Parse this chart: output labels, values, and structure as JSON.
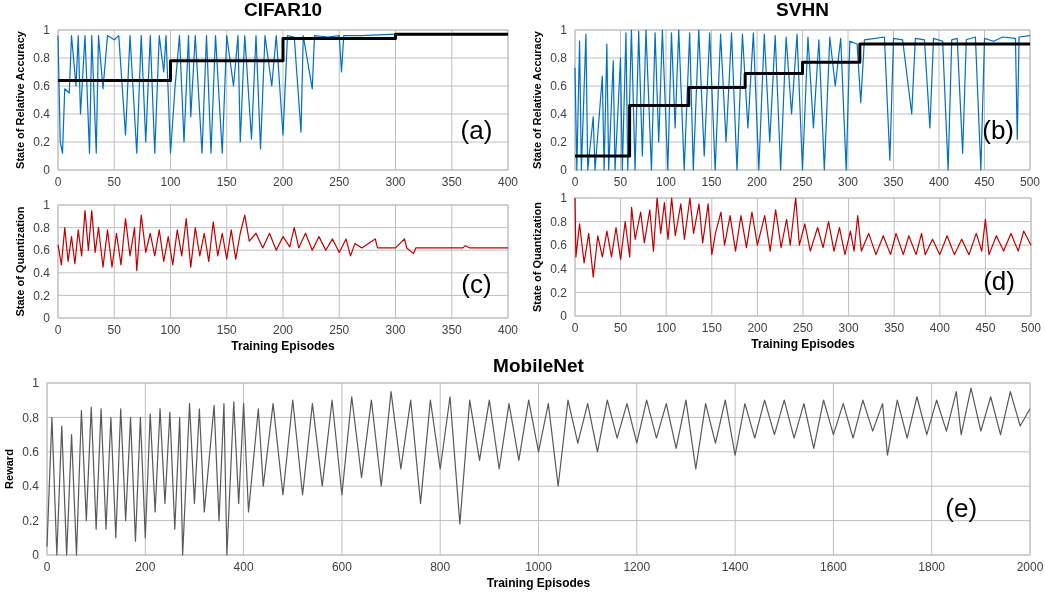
{
  "chart_data": [
    {
      "type": "line",
      "title": "CIFAR10",
      "ylabel": "State of Relative Accuracy",
      "xlim": [
        0,
        400
      ],
      "xticks": [
        0,
        50,
        100,
        150,
        200,
        250,
        300,
        350,
        400
      ],
      "ylim": [
        0,
        1
      ],
      "yticks": [
        0,
        0.2,
        0.4,
        0.6,
        0.8,
        1
      ],
      "grid": true,
      "annotations": [
        "(a)"
      ],
      "series": [
        {
          "color": "#0070c0",
          "x": [
            0,
            2,
            4,
            6,
            10,
            12,
            16,
            18,
            20,
            24,
            28,
            30,
            34,
            36,
            40,
            44,
            50,
            54,
            60,
            64,
            70,
            74,
            78,
            82,
            86,
            90,
            94,
            96,
            100,
            104,
            108,
            112,
            116,
            118,
            122,
            128,
            132,
            136,
            140,
            146,
            150,
            156,
            160,
            162,
            166,
            172,
            176,
            180,
            184,
            190,
            194,
            200,
            204,
            210,
            216,
            218,
            226,
            228,
            240,
            250,
            252,
            254,
            270,
            300
          ],
          "values": [
            0.96,
            0.2,
            0.12,
            0.58,
            0.55,
            0.96,
            0.6,
            0.96,
            0.4,
            0.96,
            0.12,
            0.96,
            0.12,
            0.96,
            0.58,
            0.96,
            0.93,
            0.96,
            0.25,
            0.96,
            0.12,
            0.96,
            0.2,
            0.96,
            0.12,
            0.96,
            0.7,
            0.96,
            0.12,
            0.59,
            0.96,
            0.2,
            0.96,
            0.38,
            0.96,
            0.12,
            0.96,
            0.12,
            0.96,
            0.12,
            0.96,
            0.6,
            0.96,
            0.2,
            0.96,
            0.22,
            0.96,
            0.15,
            0.96,
            0.6,
            0.96,
            0.25,
            0.96,
            0.95,
            0.27,
            0.96,
            0.58,
            0.96,
            0.95,
            0.96,
            0.7,
            0.96,
            0.96,
            0.97
          ]
        },
        {
          "type": "step",
          "color": "#000000",
          "x": [
            0,
            100,
            200,
            300,
            400
          ],
          "values": [
            0.64,
            0.78,
            0.94,
            0.97,
            0.97
          ]
        }
      ]
    },
    {
      "type": "line",
      "title": "SVHN",
      "ylabel": "State of Relative Accuracy",
      "xlim": [
        0,
        500
      ],
      "xticks": [
        0,
        50,
        100,
        150,
        200,
        250,
        300,
        350,
        400,
        450,
        500
      ],
      "ylim": [
        0,
        1
      ],
      "yticks": [
        0,
        0.2,
        0.4,
        0.6,
        0.8,
        1
      ],
      "grid": true,
      "annotations": [
        "(b)"
      ],
      "series": [
        {
          "color": "#0070c0",
          "x": [
            0,
            2,
            5,
            7,
            12,
            14,
            20,
            22,
            30,
            32,
            35,
            37,
            42,
            44,
            50,
            52,
            56,
            58,
            62,
            66,
            70,
            74,
            78,
            84,
            88,
            92,
            96,
            102,
            106,
            110,
            114,
            120,
            126,
            130,
            136,
            142,
            148,
            154,
            160,
            166,
            172,
            178,
            184,
            190,
            196,
            202,
            208,
            214,
            220,
            226,
            232,
            238,
            244,
            250,
            256,
            262,
            268,
            274,
            280,
            286,
            292,
            298,
            302,
            310,
            314,
            318,
            330,
            340,
            346,
            350,
            360,
            370,
            374,
            384,
            390,
            394,
            404,
            410,
            414,
            420,
            426,
            430,
            440,
            446,
            450,
            460,
            470,
            484,
            486,
            488,
            500
          ],
          "values": [
            0.73,
            0,
            0.92,
            0,
            0.97,
            0,
            0.38,
            0,
            0.67,
            0,
            0.9,
            0,
            0.78,
            0,
            0.8,
            0,
            0.98,
            0,
            1,
            0,
            0.99,
            0.1,
            1,
            0,
            0.98,
            0.2,
            1,
            0,
            0.98,
            0.3,
            1,
            0,
            0.98,
            0,
            1,
            0.1,
            0.98,
            0,
            0.97,
            0.2,
            0.98,
            0,
            0.97,
            0.3,
            0.98,
            0,
            0.97,
            0.2,
            0.96,
            0,
            0.95,
            0.4,
            0.97,
            0,
            0.95,
            0.3,
            0.93,
            0,
            0.95,
            0.6,
            0.94,
            0,
            0.92,
            0.9,
            0.48,
            0.93,
            0.94,
            0.95,
            0.07,
            0.94,
            0.93,
            0.4,
            0.94,
            0.93,
            0.3,
            0.94,
            0.92,
            0,
            0.93,
            0.94,
            0.12,
            0.93,
            0.95,
            0,
            0.94,
            0.92,
            0.95,
            0.94,
            0.22,
            0.95,
            0.96
          ]
        },
        {
          "type": "step",
          "color": "#000000",
          "x": [
            0,
            60,
            125,
            187,
            250,
            313,
            500
          ],
          "values": [
            0.1,
            0.46,
            0.59,
            0.69,
            0.77,
            0.9,
            0.9
          ]
        }
      ]
    },
    {
      "type": "line",
      "ylabel": "State of Quantization",
      "xlabel": "Training Episodes",
      "xlim": [
        0,
        400
      ],
      "xticks": [
        0,
        50,
        100,
        150,
        200,
        250,
        300,
        350,
        400
      ],
      "ylim": [
        0,
        1
      ],
      "yticks": [
        0,
        0.2,
        0.4,
        0.6,
        0.8,
        1
      ],
      "grid": true,
      "annotations": [
        "(c)"
      ],
      "series": [
        {
          "color": "#c00000",
          "x": [
            0,
            3,
            6,
            9,
            12,
            15,
            18,
            21,
            24,
            27,
            30,
            33,
            36,
            40,
            44,
            48,
            52,
            56,
            60,
            64,
            68,
            70,
            74,
            78,
            82,
            86,
            90,
            94,
            98,
            102,
            106,
            110,
            114,
            118,
            122,
            126,
            130,
            134,
            138,
            142,
            146,
            150,
            154,
            158,
            162,
            166,
            170,
            176,
            182,
            188,
            194,
            200,
            206,
            210,
            214,
            220,
            226,
            232,
            238,
            244,
            250,
            256,
            260,
            264,
            270,
            282,
            284,
            300,
            308,
            310,
            316,
            318,
            360,
            362,
            366,
            400
          ],
          "values": [
            0.65,
            0.47,
            0.8,
            0.5,
            0.72,
            0.48,
            0.78,
            0.55,
            0.95,
            0.6,
            0.95,
            0.58,
            0.8,
            0.45,
            0.78,
            0.45,
            0.75,
            0.47,
            0.88,
            0.55,
            0.8,
            0.42,
            0.91,
            0.58,
            0.75,
            0.55,
            0.78,
            0.5,
            0.72,
            0.47,
            0.78,
            0.55,
            0.88,
            0.45,
            0.8,
            0.55,
            0.75,
            0.5,
            0.85,
            0.55,
            0.75,
            0.52,
            0.78,
            0.52,
            0.75,
            0.91,
            0.68,
            0.75,
            0.62,
            0.75,
            0.6,
            0.72,
            0.63,
            0.8,
            0.62,
            0.75,
            0.6,
            0.72,
            0.6,
            0.7,
            0.58,
            0.7,
            0.55,
            0.66,
            0.62,
            0.7,
            0.62,
            0.62,
            0.7,
            0.62,
            0.57,
            0.62,
            0.62,
            0.64,
            0.62,
            0.62
          ]
        }
      ]
    },
    {
      "type": "line",
      "ylabel": "State of Quantization",
      "xlabel": "Training Episodes",
      "xlim": [
        0,
        500
      ],
      "xticks": [
        0,
        50,
        100,
        150,
        200,
        250,
        300,
        350,
        400,
        450,
        500
      ],
      "ylim": [
        0,
        1
      ],
      "yticks": [
        0,
        0.2,
        0.4,
        0.6,
        0.8,
        1
      ],
      "grid": true,
      "annotations": [
        "(d)"
      ],
      "series": [
        {
          "color": "#c00000",
          "x": [
            0,
            1,
            5,
            10,
            15,
            20,
            25,
            30,
            35,
            40,
            45,
            50,
            55,
            60,
            62,
            66,
            72,
            76,
            82,
            86,
            90,
            94,
            98,
            102,
            106,
            110,
            116,
            120,
            126,
            130,
            136,
            140,
            146,
            150,
            154,
            160,
            164,
            170,
            176,
            182,
            188,
            194,
            200,
            208,
            214,
            220,
            226,
            232,
            236,
            242,
            246,
            252,
            258,
            266,
            272,
            278,
            284,
            290,
            296,
            302,
            306,
            310,
            314,
            322,
            330,
            338,
            346,
            352,
            360,
            366,
            374,
            380,
            384,
            392,
            400,
            408,
            416,
            424,
            432,
            440,
            446,
            450,
            454,
            462,
            470,
            478,
            486,
            492,
            500
          ],
          "values": [
            1,
            0.5,
            0.78,
            0.45,
            0.7,
            0.33,
            0.68,
            0.5,
            0.72,
            0.5,
            0.75,
            0.48,
            0.8,
            0.5,
            0.92,
            0.65,
            0.88,
            0.62,
            0.9,
            0.55,
            1,
            0.7,
            0.96,
            0.65,
            1,
            0.68,
            0.95,
            0.65,
            1,
            0.7,
            0.95,
            0.62,
            0.95,
            0.52,
            0.7,
            0.88,
            0.6,
            0.85,
            0.55,
            0.85,
            0.58,
            0.88,
            0.6,
            0.85,
            0.55,
            0.9,
            0.58,
            0.82,
            0.6,
            1,
            0.6,
            0.78,
            0.55,
            0.75,
            0.58,
            0.8,
            0.55,
            0.75,
            0.52,
            0.72,
            0.55,
            0.85,
            0.55,
            0.7,
            0.52,
            0.68,
            0.52,
            0.7,
            0.52,
            0.68,
            0.52,
            0.7,
            0.52,
            0.65,
            0.52,
            0.68,
            0.52,
            0.65,
            0.52,
            0.7,
            0.55,
            0.82,
            0.52,
            0.68,
            0.55,
            0.7,
            0.55,
            0.72,
            0.6
          ]
        }
      ]
    },
    {
      "type": "line",
      "title": "MobileNet",
      "ylabel": "Reward",
      "xlabel": "Training Episodes",
      "xlim": [
        0,
        2000
      ],
      "xticks": [
        0,
        200,
        400,
        600,
        800,
        1000,
        1200,
        1400,
        1600,
        1800,
        2000
      ],
      "ylim": [
        0,
        1
      ],
      "yticks": [
        0,
        0.2,
        0.4,
        0.6,
        0.8,
        1
      ],
      "grid": true,
      "annotations": [
        "(e)"
      ],
      "series": [
        {
          "color": "#595959",
          "x": [
            0,
            10,
            20,
            30,
            40,
            50,
            60,
            70,
            80,
            90,
            100,
            110,
            120,
            130,
            140,
            150,
            160,
            170,
            180,
            190,
            200,
            210,
            220,
            230,
            240,
            250,
            260,
            270,
            276,
            290,
            300,
            310,
            320,
            340,
            350,
            360,
            366,
            380,
            390,
            400,
            410,
            430,
            440,
            460,
            480,
            500,
            520,
            540,
            560,
            580,
            600,
            620,
            640,
            660,
            680,
            700,
            720,
            740,
            760,
            780,
            800,
            820,
            840,
            860,
            880,
            900,
            920,
            940,
            960,
            980,
            1000,
            1020,
            1040,
            1060,
            1080,
            1100,
            1120,
            1140,
            1160,
            1180,
            1200,
            1220,
            1240,
            1260,
            1280,
            1300,
            1320,
            1340,
            1360,
            1380,
            1400,
            1420,
            1440,
            1460,
            1480,
            1500,
            1520,
            1540,
            1560,
            1580,
            1600,
            1620,
            1640,
            1660,
            1680,
            1700,
            1710,
            1730,
            1750,
            1770,
            1790,
            1810,
            1830,
            1850,
            1860,
            1880,
            1900,
            1920,
            1940,
            1960,
            1980,
            2000
          ],
          "values": [
            0.05,
            0.8,
            0,
            0.75,
            0,
            0.7,
            0,
            0.84,
            0.2,
            0.86,
            0.15,
            0.85,
            0.15,
            0.8,
            0.1,
            0.85,
            0.2,
            0.8,
            0.08,
            0.8,
            0.1,
            0.82,
            0.25,
            0.85,
            0.3,
            0.83,
            0.15,
            0.8,
            0,
            0.88,
            0.3,
            0.85,
            0.25,
            0.87,
            0.2,
            0.88,
            0,
            0.89,
            0.3,
            0.88,
            0.25,
            0.85,
            0.4,
            0.88,
            0.35,
            0.9,
            0.35,
            0.88,
            0.4,
            0.9,
            0.35,
            0.92,
            0.45,
            0.9,
            0.4,
            0.95,
            0.5,
            0.9,
            0.3,
            0.9,
            0.5,
            0.92,
            0.18,
            0.9,
            0.55,
            0.9,
            0.5,
            0.88,
            0.55,
            0.9,
            0.6,
            0.88,
            0.4,
            0.9,
            0.65,
            0.88,
            0.6,
            0.9,
            0.68,
            0.88,
            0.65,
            0.9,
            0.68,
            0.88,
            0.62,
            0.9,
            0.5,
            0.88,
            0.65,
            0.9,
            0.58,
            0.88,
            0.68,
            0.9,
            0.7,
            0.9,
            0.68,
            0.88,
            0.62,
            0.9,
            0.7,
            0.88,
            0.68,
            0.9,
            0.72,
            0.88,
            0.58,
            0.9,
            0.68,
            0.92,
            0.7,
            0.9,
            0.72,
            0.95,
            0.7,
            0.97,
            0.72,
            0.92,
            0.7,
            0.95,
            0.75,
            0.85
          ]
        }
      ]
    }
  ]
}
